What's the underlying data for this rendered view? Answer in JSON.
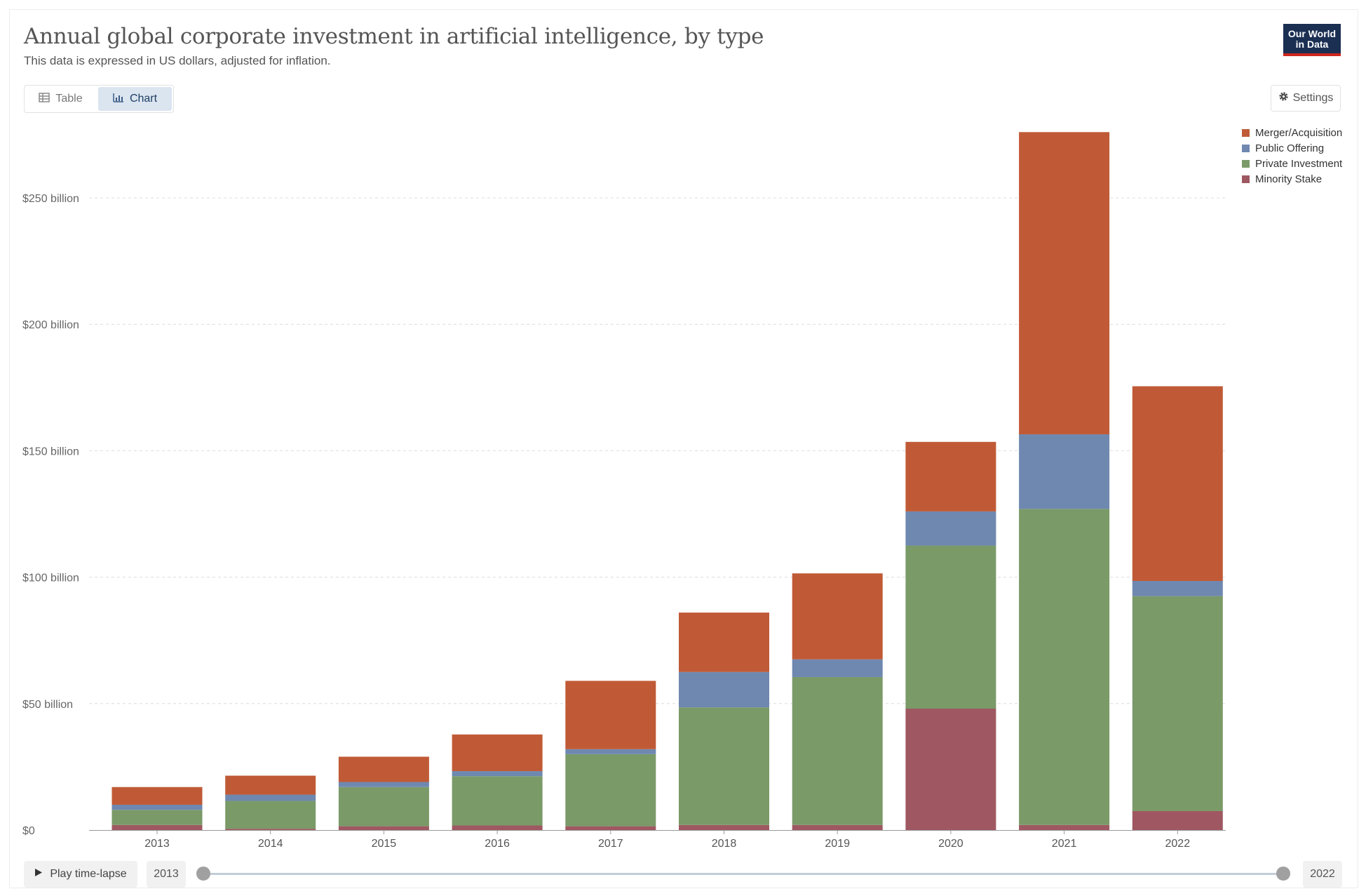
{
  "header": {
    "title": "Annual global corporate investment in artificial intelligence, by type",
    "subtitle": "This data is expressed in US dollars, adjusted for inflation.",
    "logo_line1": "Our World",
    "logo_line2": "in Data"
  },
  "tabs": {
    "table_label": "Table",
    "chart_label": "Chart",
    "active": "Chart"
  },
  "settings_label": "Settings",
  "timeline": {
    "play_label": "Play time-lapse",
    "start_year": "2013",
    "end_year": "2022"
  },
  "colors": {
    "merger": "#c05a36",
    "public": "#6f88b0",
    "private": "#7a9a68",
    "minority": "#9f5862",
    "brand": "#1a2f52",
    "accent": "#ce261e"
  },
  "chart_data": {
    "type": "bar",
    "stacked": true,
    "categories": [
      "2013",
      "2014",
      "2015",
      "2016",
      "2017",
      "2018",
      "2019",
      "2020",
      "2021",
      "2022"
    ],
    "series": [
      {
        "name": "Minority Stake",
        "color": "#9f5862",
        "values": [
          2.0,
          0.5,
          1.5,
          1.8,
          1.5,
          2.0,
          2.0,
          48.0,
          2.0,
          7.5
        ]
      },
      {
        "name": "Private Investment",
        "color": "#7a9a68",
        "values": [
          6.0,
          11.0,
          15.5,
          19.5,
          28.5,
          46.5,
          58.5,
          64.5,
          125.0,
          85.0
        ]
      },
      {
        "name": "Public Offering",
        "color": "#6f88b0",
        "values": [
          2.0,
          2.5,
          2.0,
          2.0,
          2.0,
          14.0,
          7.0,
          13.5,
          29.5,
          6.0
        ]
      },
      {
        "name": "Merger/Acquisition",
        "color": "#c05a36",
        "values": [
          7.0,
          7.5,
          10.0,
          14.5,
          27.0,
          23.5,
          34.0,
          27.5,
          119.5,
          77.0
        ]
      }
    ],
    "legend_order": [
      "Merger/Acquisition",
      "Public Offering",
      "Private Investment",
      "Minority Stake"
    ],
    "yticks": [
      0,
      50,
      100,
      150,
      200,
      250
    ],
    "ytick_labels": [
      "$0",
      "$50 billion",
      "$100 billion",
      "$150 billion",
      "$200 billion",
      "$250 billion"
    ],
    "ylim": [
      0,
      280
    ],
    "xlabel": "",
    "ylabel": "",
    "grid": true,
    "legend_position": "top-right"
  }
}
